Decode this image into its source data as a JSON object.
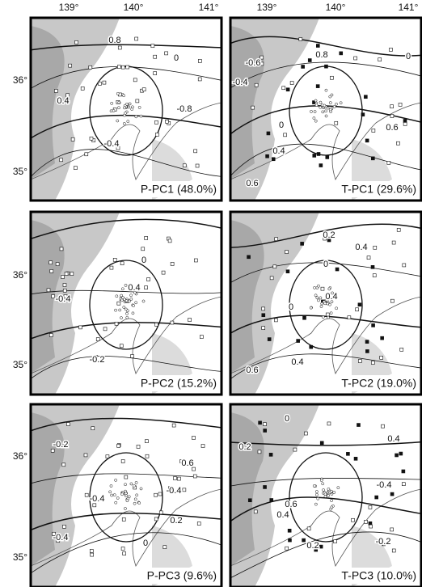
{
  "longitude_labels": [
    "139°",
    "140°",
    "141°"
  ],
  "latitude_labels": [
    "36°",
    "35°"
  ],
  "panels": [
    {
      "title": "P-PC1 (48.0%)",
      "contour_labels": [
        "0.8",
        "0",
        "0.4",
        "-0.8",
        "-0.4"
      ]
    },
    {
      "title": "T-PC1 (29.6%)",
      "contour_labels": [
        "-0.6",
        "0.8",
        "0",
        "-0.4",
        "0",
        "0.6",
        "0.4",
        "0.6"
      ]
    },
    {
      "title": "P-PC2 (15.2%)",
      "contour_labels": [
        "0",
        "-0.4",
        "0.4",
        "-0.2"
      ]
    },
    {
      "title": "T-PC2 (19.0%)",
      "contour_labels": [
        "0.2",
        "0.4",
        "0",
        "0.4",
        "0",
        "0.6",
        "0.4"
      ]
    },
    {
      "title": "P-PC3 (9.6%)",
      "contour_labels": [
        "-0.2",
        "0.6",
        "-0.4",
        "-0.4",
        "0.2",
        "-0.4",
        "0"
      ]
    },
    {
      "title": "T-PC3 (10.0%)",
      "contour_labels": [
        "0",
        "0.4",
        "0.2",
        "-0.4",
        "0.6",
        "0.4",
        "-0.2",
        "0.2"
      ]
    }
  ]
}
